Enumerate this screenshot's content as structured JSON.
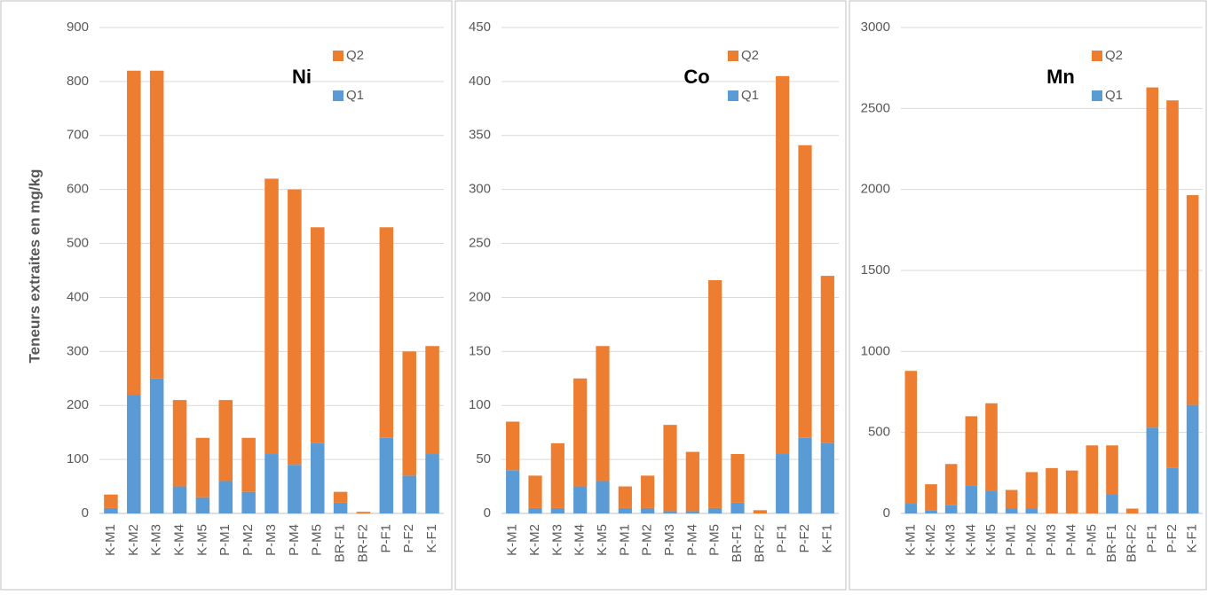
{
  "chart_data": [
    {
      "type": "stacked-bar",
      "title": "Ni",
      "y_label": "Teneurs extraites en mg/kg",
      "categories": [
        "K-M1",
        "K-M2",
        "K-M3",
        "K-M4",
        "K-M5",
        "P-M1",
        "P-M2",
        "P-M3",
        "P-M4",
        "P-M5",
        "BR-F1",
        "BR-F2",
        "P-F1",
        "P-F2",
        "K-F1"
      ],
      "series": [
        {
          "name": "Q1",
          "color": "#5b9bd5",
          "values": [
            10,
            220,
            250,
            50,
            30,
            60,
            40,
            110,
            90,
            130,
            20,
            0,
            140,
            70,
            110
          ]
        },
        {
          "name": "Q2",
          "color": "#ed7d31",
          "values": [
            25,
            600,
            570,
            160,
            110,
            150,
            100,
            510,
            510,
            400,
            20,
            3,
            390,
            230,
            200
          ]
        }
      ],
      "ylim": [
        0,
        900
      ],
      "yticks": [
        0,
        100,
        200,
        300,
        400,
        500,
        600,
        700,
        800,
        900
      ],
      "grid": true
    },
    {
      "type": "stacked-bar",
      "title": "Co",
      "categories": [
        "K-M1",
        "K-M2",
        "K-M3",
        "K-M4",
        "K-M5",
        "P-M1",
        "P-M2",
        "P-M3",
        "P-M4",
        "P-M5",
        "BR-F1",
        "BR-F2",
        "P-F1",
        "P-F2",
        "K-F1"
      ],
      "series": [
        {
          "name": "Q1",
          "color": "#5b9bd5",
          "values": [
            40,
            5,
            5,
            25,
            30,
            5,
            5,
            2,
            2,
            5,
            10,
            0,
            55,
            70,
            65
          ]
        },
        {
          "name": "Q2",
          "color": "#ed7d31",
          "values": [
            45,
            30,
            60,
            100,
            125,
            20,
            30,
            80,
            55,
            211,
            45,
            3,
            350,
            271,
            155
          ]
        }
      ],
      "ylim": [
        0,
        450
      ],
      "yticks": [
        0,
        50,
        100,
        150,
        200,
        250,
        300,
        350,
        400,
        450
      ],
      "grid": true
    },
    {
      "type": "stacked-bar",
      "title": "Mn",
      "categories": [
        "K-M1",
        "K-M2",
        "K-M3",
        "K-M4",
        "K-M5",
        "P-M1",
        "P-M2",
        "P-M3",
        "P-M4",
        "P-M5",
        "BR-F1",
        "BR-F2",
        "P-F1",
        "P-F2",
        "K-F1"
      ],
      "series": [
        {
          "name": "Q1",
          "color": "#5b9bd5",
          "values": [
            60,
            20,
            50,
            170,
            140,
            30,
            30,
            0,
            0,
            0,
            120,
            0,
            530,
            280,
            670
          ]
        },
        {
          "name": "Q2",
          "color": "#ed7d31",
          "values": [
            820,
            160,
            255,
            430,
            540,
            115,
            225,
            280,
            265,
            420,
            300,
            30,
            2100,
            2270,
            1295
          ]
        }
      ],
      "ylim": [
        0,
        3000
      ],
      "yticks": [
        0,
        500,
        1000,
        1500,
        2000,
        2500,
        3000
      ],
      "grid": true
    }
  ]
}
